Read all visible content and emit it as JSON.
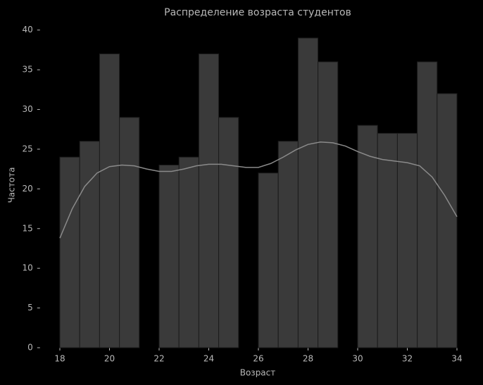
{
  "chart_data": {
    "type": "histogram",
    "title": "Распределение возраста студентов",
    "x_label": "Возраст",
    "y_label": "Частота",
    "bins": [
      18,
      18.8,
      19.6,
      20.4,
      21.2,
      22,
      22.8,
      23.6,
      24.4,
      25.2,
      26,
      26.8,
      27.6,
      28.4,
      29.2,
      30,
      30.8,
      31.6,
      32.4,
      33.2,
      34
    ],
    "values": [
      24,
      26,
      37,
      29,
      0,
      23,
      24,
      37,
      29,
      0,
      22,
      26,
      39,
      36,
      0,
      28,
      27,
      27,
      36,
      32
    ],
    "color": "#3a3a3a",
    "edge_color": "#1c1c1c",
    "kde": {
      "color": "#8a8a8a",
      "x": [
        18,
        18.5,
        19,
        19.5,
        20,
        20.5,
        21,
        21.5,
        22,
        22.5,
        23,
        23.5,
        24,
        24.5,
        25,
        25.5,
        26,
        26.5,
        27,
        27.5,
        28,
        28.5,
        29,
        29.5,
        30,
        30.5,
        31,
        31.5,
        32,
        32.5,
        33,
        33.5,
        34
      ],
      "values": [
        13.8,
        17.5,
        20.3,
        22,
        22.8,
        23,
        22.9,
        22.5,
        22.2,
        22.2,
        22.5,
        22.9,
        23.1,
        23.1,
        22.9,
        22.7,
        22.7,
        23.2,
        24,
        24.9,
        25.6,
        25.9,
        25.8,
        25.4,
        24.7,
        24.1,
        23.7,
        23.5,
        23.3,
        22.9,
        21.5,
        19.2,
        16.5
      ]
    },
    "xlim": [
      17.2,
      34.8
    ],
    "ylim": [
      0,
      40.95
    ],
    "xticks": [
      18,
      20,
      22,
      24,
      26,
      28,
      30,
      32,
      34
    ],
    "yticks": [
      0,
      5,
      10,
      15,
      20,
      25,
      30,
      35,
      40
    ]
  }
}
